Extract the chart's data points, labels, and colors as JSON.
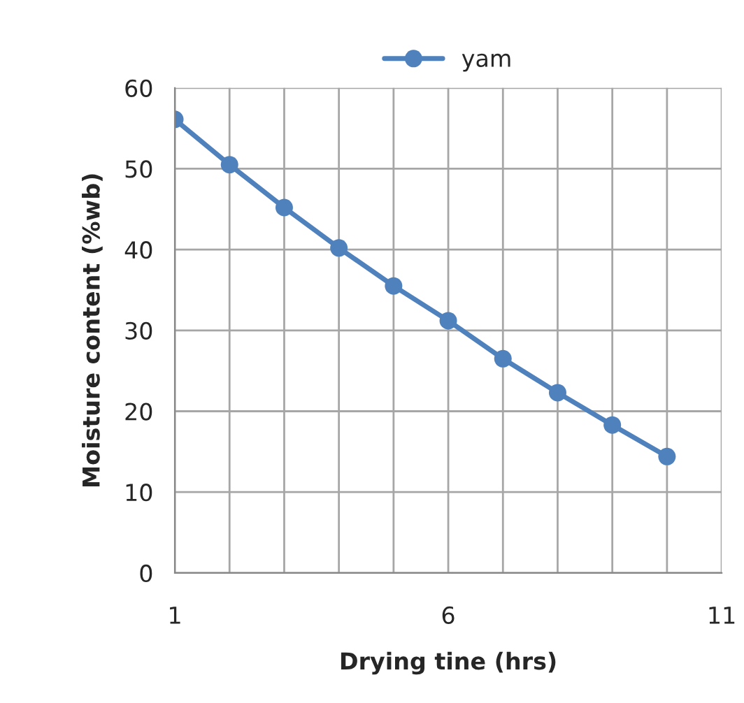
{
  "chart_data": {
    "type": "line",
    "xlabel": "Drying tine (hrs)",
    "ylabel": "Moisture content (%wb)",
    "x": [
      1,
      2,
      3,
      4,
      5,
      6,
      7,
      8,
      9,
      10
    ],
    "series": [
      {
        "name": "yam",
        "color": "#4f81bd",
        "values": [
          56.1,
          50.5,
          45.2,
          40.2,
          35.5,
          31.2,
          26.5,
          22.3,
          18.3,
          14.4
        ]
      }
    ],
    "xlim": [
      1,
      11
    ],
    "ylim": [
      0,
      60
    ],
    "xticks": [
      1,
      {
        "value": 2,
        "label": null
      },
      {
        "value": 3,
        "label": null
      },
      {
        "value": 4,
        "label": null
      },
      {
        "value": 5,
        "label": null
      },
      6,
      {
        "value": 7,
        "label": null
      },
      {
        "value": 8,
        "label": null
      },
      {
        "value": 9,
        "label": null
      },
      {
        "value": 10,
        "label": null
      },
      11
    ],
    "yticks": [
      0,
      10,
      20,
      30,
      40,
      50,
      60
    ],
    "grid": true,
    "legend": "top",
    "marker": "circle",
    "line_style": "solid"
  }
}
